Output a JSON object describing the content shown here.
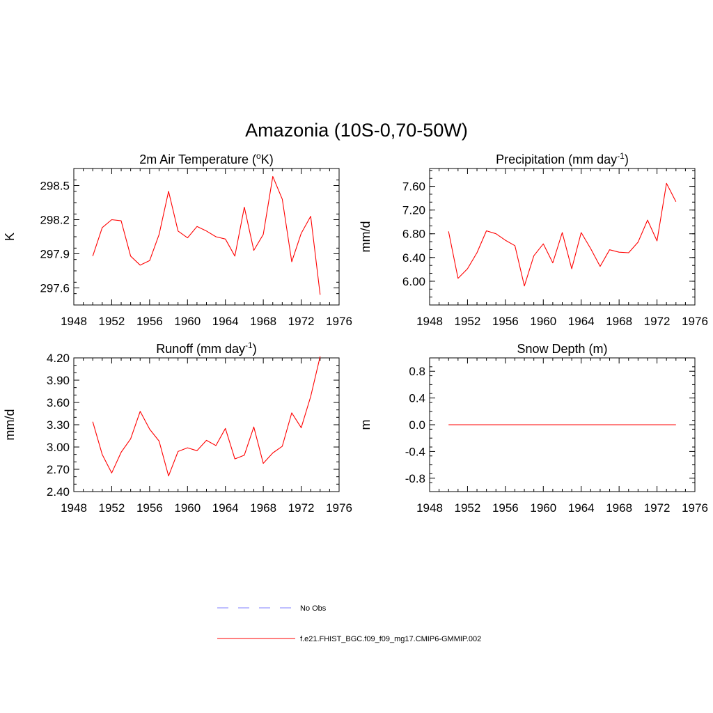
{
  "title": "Amazonia (10S-0,70-50W)",
  "colors": {
    "model": "#ff0000",
    "obs": "#9999ff",
    "axis": "#000000"
  },
  "legend": {
    "obs_label": "No Obs",
    "model_label": "f.e21.FHIST_BGC.f09_f09_mg17.CMIP6-GMMIP.002"
  },
  "chart_data": [
    {
      "type": "line",
      "title": "2m Air Temperature (",
      "title_sup": "o",
      "title_end": "K)",
      "ylabel": "K",
      "xlim": [
        1948,
        1976
      ],
      "ylim": [
        297.45,
        298.65
      ],
      "xticks": [
        "1948",
        "1952",
        "1956",
        "1960",
        "1964",
        "1968",
        "1972",
        "1976"
      ],
      "yticks": [
        "297.6",
        "297.9",
        "298.2",
        "298.5"
      ],
      "series": [
        {
          "x": [
            1950,
            1951,
            1952,
            1953,
            1954,
            1955,
            1956,
            1957,
            1958,
            1959,
            1960,
            1961,
            1962,
            1963,
            1964,
            1965,
            1966,
            1967,
            1968,
            1969,
            1970,
            1971,
            1972,
            1973,
            1974
          ],
          "values": [
            297.88,
            298.13,
            298.2,
            298.19,
            297.88,
            297.8,
            297.84,
            298.07,
            298.45,
            298.1,
            298.04,
            298.14,
            298.1,
            298.05,
            298.03,
            297.88,
            298.31,
            297.93,
            298.07,
            298.58,
            298.38,
            297.83,
            298.08,
            298.23,
            297.54
          ]
        }
      ]
    },
    {
      "type": "line",
      "title": "Precipitation (mm day",
      "title_sup": "-1",
      "title_end": ")",
      "ylabel": "mm/d",
      "xlim": [
        1948,
        1976
      ],
      "ylim": [
        5.6,
        7.9
      ],
      "xticks": [
        "1948",
        "1952",
        "1956",
        "1960",
        "1964",
        "1968",
        "1972",
        "1976"
      ],
      "yticks": [
        "6.00",
        "6.40",
        "6.80",
        "7.20",
        "7.60"
      ],
      "series": [
        {
          "x": [
            1950,
            1951,
            1952,
            1953,
            1954,
            1955,
            1956,
            1957,
            1958,
            1959,
            1960,
            1961,
            1962,
            1963,
            1964,
            1965,
            1966,
            1967,
            1968,
            1969,
            1970,
            1971,
            1972,
            1973,
            1974
          ],
          "values": [
            6.84,
            6.05,
            6.21,
            6.48,
            6.85,
            6.8,
            6.69,
            6.6,
            5.92,
            6.43,
            6.63,
            6.31,
            6.82,
            6.21,
            6.82,
            6.55,
            6.25,
            6.53,
            6.49,
            6.48,
            6.66,
            7.03,
            6.68,
            7.65,
            7.34
          ]
        }
      ]
    },
    {
      "type": "line",
      "title": "Runoff (mm day",
      "title_sup": "-1",
      "title_end": ")",
      "ylabel": "mm/d",
      "xlim": [
        1948,
        1976
      ],
      "ylim": [
        2.4,
        4.2
      ],
      "xticks": [
        "1948",
        "1952",
        "1956",
        "1960",
        "1964",
        "1968",
        "1972",
        "1976"
      ],
      "yticks": [
        "2.40",
        "2.70",
        "3.00",
        "3.30",
        "3.60",
        "3.90",
        "4.20"
      ],
      "series": [
        {
          "x": [
            1950,
            1951,
            1952,
            1953,
            1954,
            1955,
            1956,
            1957,
            1958,
            1959,
            1960,
            1961,
            1962,
            1963,
            1964,
            1965,
            1966,
            1967,
            1968,
            1969,
            1970,
            1971,
            1972,
            1973,
            1974
          ],
          "values": [
            3.34,
            2.9,
            2.65,
            2.93,
            3.11,
            3.48,
            3.24,
            3.08,
            2.61,
            2.94,
            2.99,
            2.95,
            3.09,
            3.02,
            3.25,
            2.84,
            2.89,
            3.27,
            2.78,
            2.92,
            3.01,
            3.46,
            3.26,
            3.68,
            4.22
          ]
        }
      ]
    },
    {
      "type": "line",
      "title": "Snow Depth (m)",
      "title_sup": "",
      "title_end": "",
      "ylabel": "m",
      "xlim": [
        1948,
        1976
      ],
      "ylim": [
        -1.0,
        1.0
      ],
      "xticks": [
        "1948",
        "1952",
        "1956",
        "1960",
        "1964",
        "1968",
        "1972",
        "1976"
      ],
      "yticks": [
        "-0.8",
        "-0.4",
        "0.0",
        "0.4",
        "0.8"
      ],
      "series": [
        {
          "x": [
            1950,
            1951,
            1952,
            1953,
            1954,
            1955,
            1956,
            1957,
            1958,
            1959,
            1960,
            1961,
            1962,
            1963,
            1964,
            1965,
            1966,
            1967,
            1968,
            1969,
            1970,
            1971,
            1972,
            1973,
            1974
          ],
          "values": [
            0,
            0,
            0,
            0,
            0,
            0,
            0,
            0,
            0,
            0,
            0,
            0,
            0,
            0,
            0,
            0,
            0,
            0,
            0,
            0,
            0,
            0,
            0,
            0,
            0
          ]
        }
      ]
    }
  ]
}
